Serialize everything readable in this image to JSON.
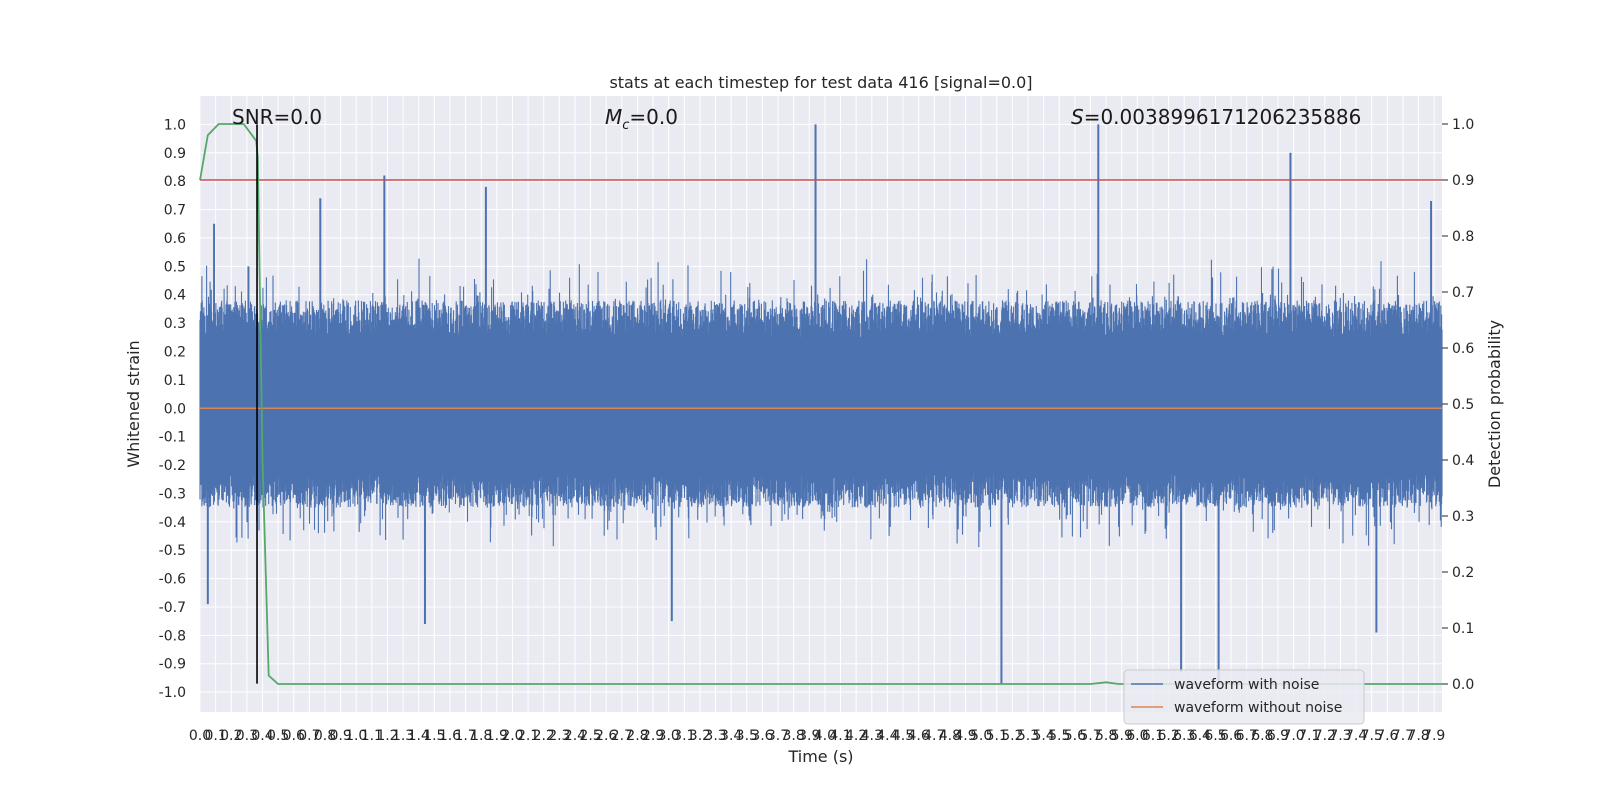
{
  "chart_data": {
    "type": "line",
    "title": "stats at each timestep for test data 416 [signal=0.0]",
    "xlabel": "Time (s)",
    "ylabel": "Whitened strain",
    "y2label": "Detection probability",
    "xlim": [
      0.0,
      7.95
    ],
    "ylim": [
      -1.07,
      1.1
    ],
    "y2lim": [
      -0.05,
      1.05
    ],
    "x_ticks": [
      "0.0",
      "0.1",
      "0.2",
      "0.3",
      "0.4",
      "0.5",
      "0.6",
      "0.7",
      "0.8",
      "0.9",
      "1.0",
      "1.1",
      "1.2",
      "1.3",
      "1.4",
      "1.5",
      "1.6",
      "1.7",
      "1.8",
      "1.9",
      "2.0",
      "2.1",
      "2.2",
      "2.3",
      "2.4",
      "2.5",
      "2.6",
      "2.7",
      "2.8",
      "2.9",
      "3.0",
      "3.1",
      "3.2",
      "3.3",
      "3.4",
      "3.5",
      "3.6",
      "3.7",
      "3.8",
      "3.9",
      "4.0",
      "4.1",
      "4.2",
      "4.3",
      "4.4",
      "4.5",
      "4.6",
      "4.7",
      "4.8",
      "4.9",
      "5.0",
      "5.1",
      "5.2",
      "5.3",
      "5.4",
      "5.5",
      "5.6",
      "5.7",
      "5.8",
      "5.9",
      "6.0",
      "6.1",
      "6.2",
      "6.3",
      "6.4",
      "6.5",
      "6.6",
      "6.7",
      "6.8",
      "6.9",
      "7.0",
      "7.1",
      "7.2",
      "7.3",
      "7.4",
      "7.5",
      "7.6",
      "7.7",
      "7.8",
      "7.9"
    ],
    "y_ticks": [
      "1.0",
      "0.9",
      "0.8",
      "0.7",
      "0.6",
      "0.5",
      "0.4",
      "0.3",
      "0.2",
      "0.1",
      "0.0",
      "-0.1",
      "-0.2",
      "-0.3",
      "-0.4",
      "-0.5",
      "-0.6",
      "-0.7",
      "-0.8",
      "-0.9",
      "-1.0"
    ],
    "y2_ticks": [
      "1.0",
      "0.9",
      "0.8",
      "0.7",
      "0.6",
      "0.5",
      "0.4",
      "0.3",
      "0.2",
      "0.1",
      "0.0"
    ],
    "series": [
      {
        "name": "waveform with noise",
        "color": "#4c72b0",
        "kind": "noise",
        "envelope_typical": [
          -0.35,
          0.38
        ],
        "spikes": [
          {
            "x": 0.05,
            "y": -0.69
          },
          {
            "x": 0.09,
            "y": 0.65
          },
          {
            "x": 0.31,
            "y": 0.5
          },
          {
            "x": 1.18,
            "y": 0.82
          },
          {
            "x": 1.83,
            "y": 0.78
          },
          {
            "x": 0.77,
            "y": 0.74
          },
          {
            "x": 1.44,
            "y": -0.76
          },
          {
            "x": 3.02,
            "y": -0.75
          },
          {
            "x": 3.94,
            "y": 1.0
          },
          {
            "x": 5.13,
            "y": -0.97
          },
          {
            "x": 5.75,
            "y": 1.0
          },
          {
            "x": 6.28,
            "y": -0.93
          },
          {
            "x": 6.52,
            "y": -0.97
          },
          {
            "x": 6.98,
            "y": 0.9
          },
          {
            "x": 7.53,
            "y": -0.79
          },
          {
            "x": 7.88,
            "y": 0.73
          }
        ]
      },
      {
        "name": "waveform without noise",
        "color": "#dd8452",
        "x": [
          0.0,
          7.95
        ],
        "y": [
          0.0,
          0.0
        ]
      },
      {
        "name": "detection probability",
        "color": "#55a868",
        "axis": "right",
        "x": [
          0.0,
          0.05,
          0.12,
          0.2,
          0.28,
          0.36,
          0.37,
          0.4,
          0.44,
          0.5,
          1.0,
          2.0,
          3.0,
          4.0,
          5.0,
          5.7,
          5.8,
          5.88,
          6.0,
          7.0,
          7.95
        ],
        "y": [
          0.9,
          0.98,
          1.0,
          1.0,
          1.0,
          0.97,
          0.94,
          0.4,
          0.015,
          0.0,
          0.0,
          0.0,
          0.0,
          0.0,
          0.0,
          0.0,
          0.003,
          0.0,
          0.0,
          0.0,
          0.0
        ]
      },
      {
        "name": "threshold",
        "color": "#c44e52",
        "axis": "right",
        "x": [
          0.0,
          7.95
        ],
        "y": [
          0.9,
          0.9
        ]
      }
    ],
    "vline": {
      "x": 0.365,
      "color": "#000000"
    },
    "annotations": {
      "snr": "SNR=0.0",
      "mc_symbol": "M",
      "mc_sub": "c",
      "mc_value": "=0.0",
      "s_symbol": "S",
      "s_value": "=0.0038996171206235886"
    },
    "legend": {
      "position": "lower-right",
      "entries": [
        {
          "label": "waveform with noise",
          "color": "#4c72b0"
        },
        {
          "label": "waveform without noise",
          "color": "#dd8452"
        }
      ]
    }
  }
}
